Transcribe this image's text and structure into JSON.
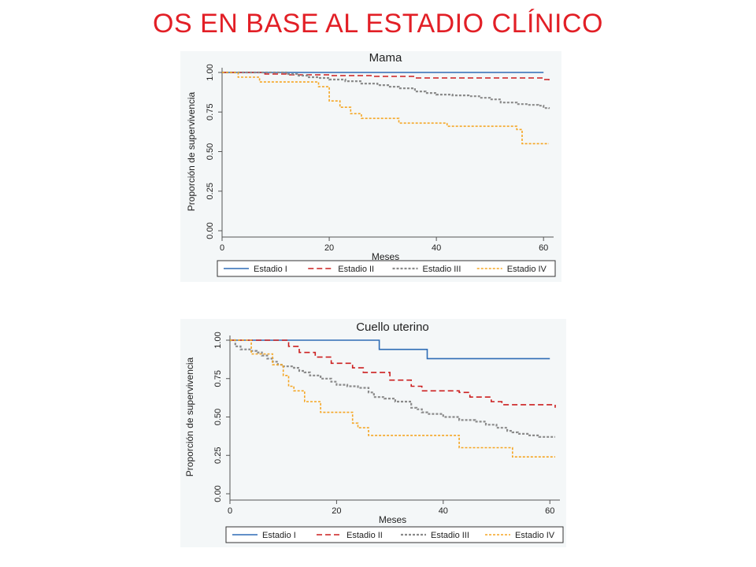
{
  "slide": {
    "title": "OS EN BASE AL ESTADIO CLÍNICO"
  },
  "colors": {
    "title": "#e21f26",
    "estadio_i": "#2e6cb5",
    "estadio_ii": "#cc1f1f",
    "estadio_iii": "#8a8a8a",
    "estadio_iv": "#f5a623"
  },
  "chart_data": [
    {
      "type": "line",
      "subtype": "kaplan-meier step",
      "title": "Mama",
      "xlabel": "Meses",
      "ylabel": "Proporción de supervivencia",
      "xlim": [
        0,
        61
      ],
      "ylim": [
        0,
        1
      ],
      "xticks": [
        0,
        20,
        40,
        60
      ],
      "xtick_labels": [
        "0",
        "20",
        "40",
        "60"
      ],
      "yticks": [
        0,
        0.25,
        0.5,
        0.75,
        1.0
      ],
      "ytick_labels": [
        "0.00",
        "0.25",
        "0.50",
        "0.75",
        "1.00"
      ],
      "grid": false,
      "legend_position": "bottom",
      "series": [
        {
          "name": "Estadio I",
          "style": "solid",
          "x": [
            0,
            60
          ],
          "y": [
            1.0,
            1.0
          ]
        },
        {
          "name": "Estadio II",
          "style": "dashed",
          "x": [
            0,
            8,
            12,
            20,
            28,
            36,
            60,
            61
          ],
          "y": [
            1.0,
            0.99,
            0.985,
            0.98,
            0.975,
            0.965,
            0.955,
            0.945
          ]
        },
        {
          "name": "Estadio III",
          "style": "dotted",
          "x": [
            0,
            12,
            14,
            16,
            18,
            20,
            23,
            26,
            29,
            31,
            33,
            36,
            38,
            40,
            43,
            46,
            48,
            50,
            52,
            55,
            57,
            59,
            60,
            61
          ],
          "y": [
            1.0,
            0.99,
            0.98,
            0.97,
            0.965,
            0.955,
            0.945,
            0.93,
            0.92,
            0.91,
            0.9,
            0.88,
            0.87,
            0.86,
            0.855,
            0.85,
            0.84,
            0.83,
            0.81,
            0.8,
            0.795,
            0.79,
            0.775,
            0.77
          ]
        },
        {
          "name": "Estadio IV",
          "style": "dotted",
          "x": [
            0,
            3,
            7,
            18,
            20,
            22,
            24,
            26,
            33,
            42,
            55,
            56,
            61
          ],
          "y": [
            1.0,
            0.97,
            0.94,
            0.91,
            0.82,
            0.78,
            0.74,
            0.71,
            0.68,
            0.66,
            0.64,
            0.55,
            0.55
          ]
        }
      ]
    },
    {
      "type": "line",
      "subtype": "kaplan-meier step",
      "title": "Cuello uterino",
      "xlabel": "Meses",
      "ylabel": "Proporción de supervivencia",
      "xlim": [
        0,
        61
      ],
      "ylim": [
        0,
        1
      ],
      "xticks": [
        0,
        20,
        40,
        60
      ],
      "xtick_labels": [
        "0",
        "20",
        "40",
        "60"
      ],
      "yticks": [
        0,
        0.25,
        0.5,
        0.75,
        1.0
      ],
      "ytick_labels": [
        "0.00",
        "0.25",
        "0.50",
        "0.75",
        "1.00"
      ],
      "grid": false,
      "legend_position": "bottom",
      "series": [
        {
          "name": "Estadio I",
          "style": "solid",
          "x": [
            0,
            28,
            37,
            60
          ],
          "y": [
            1.0,
            0.94,
            0.88,
            0.88
          ]
        },
        {
          "name": "Estadio II",
          "style": "dashed",
          "x": [
            0,
            11,
            13,
            16,
            19,
            23,
            25,
            30,
            34,
            36,
            43,
            45,
            49,
            51,
            60,
            61
          ],
          "y": [
            1.0,
            0.96,
            0.92,
            0.89,
            0.85,
            0.82,
            0.79,
            0.74,
            0.7,
            0.67,
            0.66,
            0.63,
            0.6,
            0.58,
            0.58,
            0.56
          ]
        },
        {
          "name": "Estadio III",
          "style": "dotted",
          "x": [
            0,
            1,
            2,
            3,
            4,
            5,
            6,
            7,
            8,
            9,
            10,
            12,
            13,
            14,
            15,
            17,
            19,
            20,
            22,
            24,
            26,
            27,
            29,
            31,
            34,
            35,
            36,
            37,
            40,
            43,
            46,
            48,
            50,
            52,
            53,
            54,
            55,
            56,
            58,
            60,
            61
          ],
          "y": [
            1.0,
            0.96,
            0.94,
            0.94,
            0.93,
            0.92,
            0.9,
            0.88,
            0.86,
            0.84,
            0.83,
            0.82,
            0.8,
            0.79,
            0.77,
            0.75,
            0.73,
            0.71,
            0.7,
            0.69,
            0.66,
            0.63,
            0.62,
            0.6,
            0.56,
            0.55,
            0.53,
            0.52,
            0.5,
            0.48,
            0.47,
            0.45,
            0.43,
            0.41,
            0.4,
            0.39,
            0.39,
            0.38,
            0.37,
            0.37,
            0.37
          ]
        },
        {
          "name": "Estadio IV",
          "style": "dotted",
          "x": [
            0,
            4,
            8,
            10,
            11,
            12,
            14,
            17,
            23,
            24,
            26,
            31,
            43,
            52,
            53,
            61
          ],
          "y": [
            1.0,
            0.91,
            0.84,
            0.77,
            0.7,
            0.67,
            0.6,
            0.53,
            0.46,
            0.43,
            0.38,
            0.38,
            0.3,
            0.3,
            0.24,
            0.24
          ]
        }
      ]
    }
  ]
}
